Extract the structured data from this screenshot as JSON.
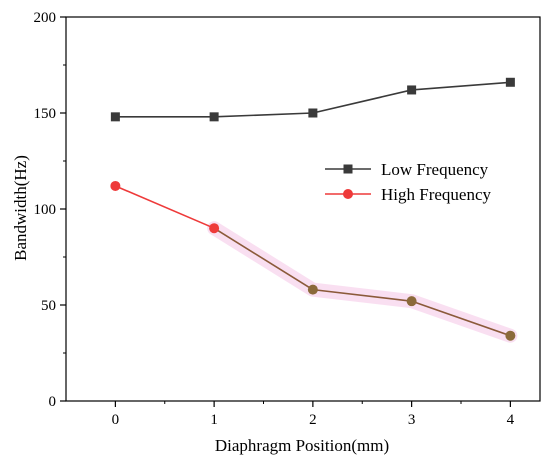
{
  "chart_data": {
    "type": "line",
    "title": "",
    "xlabel": "Diaphragm Position(mm)",
    "ylabel": "Bandwidth(Hz)",
    "x": [
      0,
      1,
      2,
      3,
      4
    ],
    "x_ticks": [
      "0",
      "1",
      "2",
      "3",
      "4"
    ],
    "xlim": [
      -0.5,
      4.3
    ],
    "ylim": [
      0,
      200
    ],
    "y_ticks": [
      "0",
      "50",
      "100",
      "150",
      "200"
    ],
    "grid": false,
    "legend_position": "right",
    "series": [
      {
        "name": "Low Frequency",
        "values": [
          148,
          148,
          150,
          162,
          166
        ],
        "color": "#3a3a3a",
        "marker": "square"
      },
      {
        "name": "High Frequency",
        "values": [
          112,
          90,
          58,
          52,
          34
        ],
        "color": "#ee3a3a",
        "marker": "circle",
        "segment_colors": [
          "#ee3a3a",
          "#8b5a3a",
          "#8b5a3a",
          "#8b5a3a"
        ],
        "point_colors": [
          "#ee3a3a",
          "#ee3a3a",
          "#8b6a3a",
          "#8b6a3a",
          "#8b6a3a"
        ]
      }
    ]
  }
}
